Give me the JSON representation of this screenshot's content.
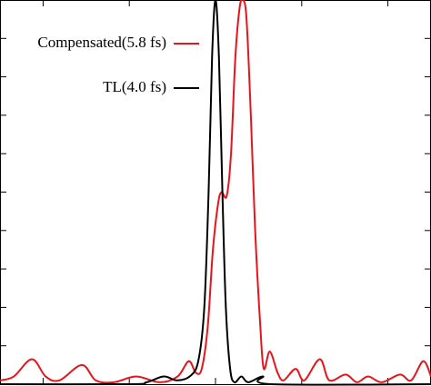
{
  "chart_data": {
    "type": "line",
    "xlim": [
      -2.5,
      2.5
    ],
    "ylim": [
      0,
      1
    ],
    "xticks": [
      -2,
      -1,
      0,
      1,
      2
    ],
    "yticks": [
      0.1,
      0.2,
      0.3,
      0.4,
      0.5,
      0.6,
      0.7,
      0.8,
      0.9
    ],
    "legend": "upper left",
    "series": [
      {
        "name": "Compensated(5.8 fs)",
        "color": "#e8141c",
        "x": [
          -2.5,
          -2.34,
          -2.13,
          -1.97,
          -1.81,
          -1.55,
          -1.39,
          -1.18,
          -0.92,
          -0.65,
          -0.44,
          -0.31,
          -0.23,
          -0.16,
          -0.09,
          -0.03,
          0.03,
          0.07,
          0.13,
          0.18,
          0.23,
          0.28,
          0.32,
          0.36,
          0.41,
          0.46,
          0.52,
          0.56,
          0.63,
          0.72,
          0.79,
          0.93,
          1.03,
          1.21,
          1.32,
          1.51,
          1.64,
          1.77,
          1.93,
          2.14,
          2.27,
          2.41,
          2.5
        ],
        "values": [
          0.01,
          0.02,
          0.065,
          0.02,
          0.01,
          0.05,
          0.01,
          0.005,
          0.02,
          0.005,
          0.02,
          0.06,
          0.03,
          0.04,
          0.15,
          0.35,
          0.47,
          0.5,
          0.49,
          0.6,
          0.85,
          0.98,
          1.0,
          0.95,
          0.7,
          0.4,
          0.15,
          0.04,
          0.085,
          0.03,
          0.01,
          0.04,
          0.01,
          0.065,
          0.01,
          0.025,
          0.005,
          0.02,
          0.005,
          0.025,
          0.01,
          0.06,
          0.02
        ]
      },
      {
        "name": "TL(4.0 fs)",
        "color": "#000000",
        "x": [
          -2.5,
          -1.0,
          -0.8,
          -0.6,
          -0.45,
          -0.3,
          -0.2,
          -0.13,
          -0.08,
          -0.04,
          0,
          0.04,
          0.08,
          0.12,
          0.17,
          0.22,
          0.3,
          0.38,
          0.55,
          0.65,
          2.5
        ],
        "values": [
          0,
          0,
          0.005,
          0.02,
          0.01,
          0.02,
          0.06,
          0.2,
          0.5,
          0.85,
          1.0,
          0.85,
          0.5,
          0.2,
          0.04,
          0.005,
          0.02,
          0.005,
          0.02,
          0,
          0
        ]
      }
    ]
  }
}
